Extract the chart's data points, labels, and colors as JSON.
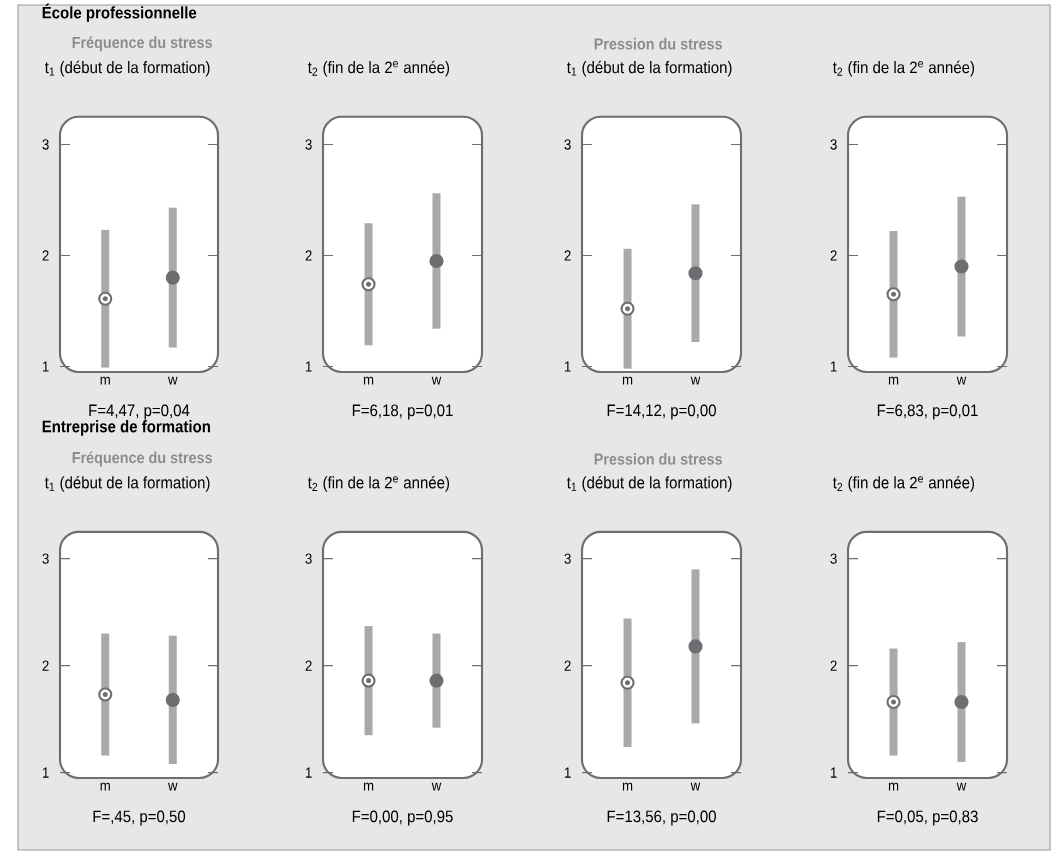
{
  "chart_data": [
    {
      "type": "scatter",
      "title": "t$_{1}$ (début de la formation)",
      "subtitle": "Fréquence du stress",
      "annotations": [
        "École professionnelle",
        "F=4,47, p=0,04"
      ],
      "categories": [
        "m",
        "w"
      ],
      "values": [
        1.61,
        1.8
      ],
      "errors": [
        0.62,
        0.63
      ],
      "color": "#6d6e71",
      "marker": "circle",
      "ylim": [
        0.95,
        3.25
      ],
      "yticks": [
        1,
        2,
        3
      ]
    },
    {
      "type": "scatter",
      "title": "t$_{2}$ (fin de la 2$^{e}$ année)",
      "annotations": [
        "F=6,18, p=0,01"
      ],
      "categories": [
        "m",
        "w"
      ],
      "values": [
        1.74,
        1.95
      ],
      "errors": [
        0.55,
        0.61
      ],
      "color": "#6d6e71",
      "marker": "circle",
      "ylim": [
        0.95,
        3.25
      ],
      "yticks": [
        1,
        2,
        3
      ]
    },
    {
      "type": "scatter",
      "title": "t$_{1}$ (début de la formation)",
      "subtitle": "Pression du stress",
      "annotations": [
        "F=14,12, p=0,00"
      ],
      "categories": [
        "m",
        "w"
      ],
      "values": [
        1.52,
        1.84
      ],
      "errors": [
        0.54,
        0.62
      ],
      "color": "#6d6e71",
      "marker": "circle",
      "ylim": [
        0.95,
        3.25
      ],
      "yticks": [
        1,
        2,
        3
      ]
    },
    {
      "type": "scatter",
      "title": "t$_{2}$ (fin de la 2$^{e}$ année)",
      "annotations": [
        "F=6,83, p=0,01"
      ],
      "categories": [
        "m",
        "w"
      ],
      "values": [
        1.65,
        1.9
      ],
      "errors": [
        0.57,
        0.63
      ],
      "color": "#6d6e71",
      "marker": "circle",
      "ylim": [
        0.95,
        3.25
      ],
      "yticks": [
        1,
        2,
        3
      ]
    },
    {
      "type": "scatter",
      "title": "t$_{1}$ (début de la formation)",
      "subtitle": "Fréquence du stress",
      "annotations": [
        "Entreprise de formation",
        "F=,45, p=0,50"
      ],
      "categories": [
        "m",
        "w"
      ],
      "values": [
        1.73,
        1.68
      ],
      "errors": [
        0.57,
        0.6
      ],
      "color": "#6d6e71",
      "marker": "circle",
      "ylim": [
        0.95,
        3.25
      ],
      "yticks": [
        1,
        2,
        3
      ]
    },
    {
      "type": "scatter",
      "title": "t$_{2}$ (fin de la 2$^{e}$ année)",
      "annotations": [
        "F=0,00, p=0,95"
      ],
      "categories": [
        "m",
        "w"
      ],
      "values": [
        1.86,
        1.86
      ],
      "errors": [
        0.51,
        0.44
      ],
      "color": "#6d6e71",
      "marker": "circle",
      "ylim": [
        0.95,
        3.25
      ],
      "yticks": [
        1,
        2,
        3
      ]
    },
    {
      "type": "scatter",
      "title": "t$_{1}$ (début de la formation)",
      "subtitle": "Pression du stress",
      "annotations": [
        "F=13,56, p=0,00"
      ],
      "categories": [
        "m",
        "w"
      ],
      "values": [
        1.84,
        2.18
      ],
      "errors": [
        0.6,
        0.72
      ],
      "color": "#6d6e71",
      "marker": "circle",
      "ylim": [
        0.95,
        3.25
      ],
      "yticks": [
        1,
        2,
        3
      ]
    },
    {
      "type": "scatter",
      "title": "t$_{2}$ (fin de la 2$^{e}$ année)",
      "annotations": [
        "F=0,05, p=0,83"
      ],
      "categories": [
        "m",
        "w"
      ],
      "values": [
        1.66,
        1.66
      ],
      "errors": [
        0.5,
        0.56
      ],
      "color": "#6d6e71",
      "marker": "circle",
      "ylim": [
        0.95,
        3.25
      ],
      "yticks": [
        1,
        2,
        3
      ]
    }
  ]
}
